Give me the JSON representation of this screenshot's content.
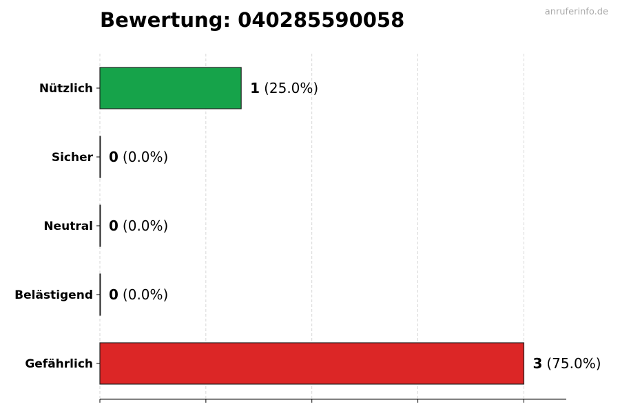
{
  "watermark": "anruferinfo.de",
  "chart_data": {
    "type": "bar",
    "orientation": "horizontal",
    "title": "Bewertung: 040285590058",
    "xlabel": "",
    "ylabel": "",
    "categories": [
      "Nützlich",
      "Sicher",
      "Neutral",
      "Belästigend",
      "Gefährlich"
    ],
    "values": [
      1,
      0,
      0,
      0,
      3
    ],
    "value_labels": [
      "1",
      "0",
      "0",
      "0",
      "3"
    ],
    "percent_labels": [
      "(25.0%)",
      "(0.0%)",
      "(0.0%)",
      "(0.0%)",
      "(75.0%)"
    ],
    "colors": [
      "#16a34a",
      "#16a34a",
      "#9ca3af",
      "#dc2626",
      "#dc2626"
    ],
    "xlim": [
      0,
      3.3
    ],
    "xgrid_ticks": [
      0,
      0.75,
      1.5,
      2.25,
      3
    ],
    "grid": "x, dashed",
    "legend": "none"
  }
}
